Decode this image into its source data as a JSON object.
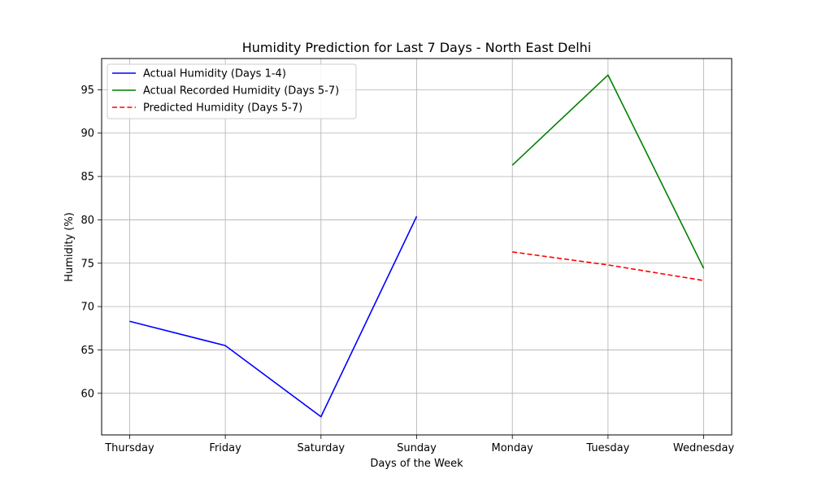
{
  "chart_data": {
    "type": "line",
    "title": "Humidity Prediction for Last 7 Days - North East Delhi",
    "xlabel": "Days of the Week",
    "ylabel": "Humidity (%)",
    "categories": [
      "Thursday",
      "Friday",
      "Saturday",
      "Sunday",
      "Monday",
      "Tuesday",
      "Wednesday"
    ],
    "ylim": [
      55.2,
      98.6
    ],
    "yticks": [
      60,
      65,
      70,
      75,
      80,
      85,
      90,
      95
    ],
    "grid": true,
    "legend_position": "top-left",
    "series": [
      {
        "name": "Actual Humidity (Days 1-4)",
        "color": "#0000ff",
        "style": "solid",
        "x": [
          "Thursday",
          "Friday",
          "Saturday",
          "Sunday"
        ],
        "values": [
          68.3,
          65.5,
          57.3,
          80.4
        ]
      },
      {
        "name": "Actual Recorded Humidity (Days 5-7)",
        "color": "#008000",
        "style": "solid",
        "x": [
          "Monday",
          "Tuesday",
          "Wednesday"
        ],
        "values": [
          86.3,
          96.7,
          74.4
        ]
      },
      {
        "name": "Predicted Humidity (Days 5-7)",
        "color": "#ff0000",
        "style": "dashed",
        "x": [
          "Monday",
          "Tuesday",
          "Wednesday"
        ],
        "values": [
          76.3,
          74.8,
          73.0
        ]
      }
    ]
  }
}
